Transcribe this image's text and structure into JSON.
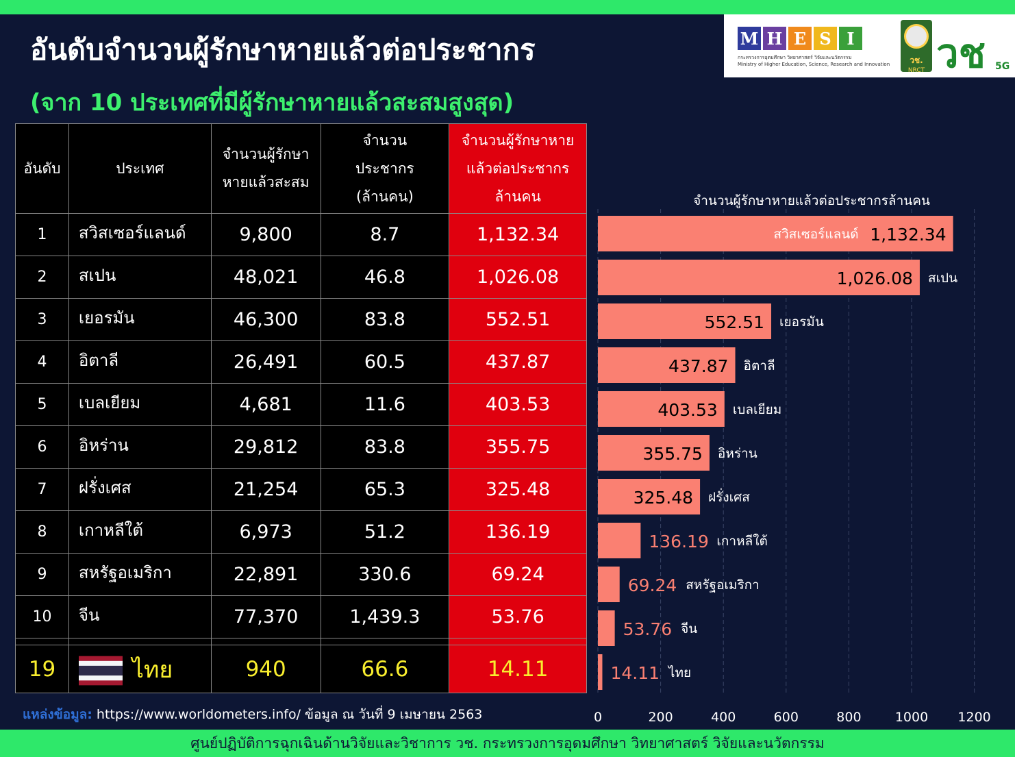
{
  "header": {
    "title": "อันดับจำนวนผู้รักษาหายแล้วต่อประชากร",
    "subtitle": "(จาก 10 ประเทศที่มีผู้รักษาหายแล้วสะสมสูงสุด)"
  },
  "logos": {
    "mhesi_letters": [
      "M",
      "H",
      "E",
      "S",
      "I"
    ],
    "mhesi_colors": [
      "#2f3b9c",
      "#6a3fa0",
      "#f08a1c",
      "#f0b81c",
      "#3aa03a"
    ],
    "mhesi_sub_th": "กระทรวงการอุดมศึกษา วิทยาศาสตร์ วิจัยและนวัตกรรม",
    "mhesi_sub_en": "Ministry of Higher Education, Science, Research and Innovation",
    "nrct_text": "วช.",
    "nrct_en": "NRCT",
    "vc_text": "วช",
    "vc_sub": "5G"
  },
  "table": {
    "headers": [
      "อันดับ",
      "ประเทศ",
      "จำนวนผู้รักษาหายแล้วสะสม",
      "จำนวนประชากร (ล้านคน)",
      "จำนวนผู้รักษาหายแล้วต่อประชากรล้านคน"
    ],
    "header_lines": {
      "col3": [
        "จำนวนผู้รักษา",
        "หายแล้วสะสม"
      ],
      "col4": [
        "จำนวน",
        "ประชากร",
        "(ล้านคน)"
      ],
      "col5": [
        "จำนวนผู้รักษาหาย",
        "แล้วต่อประชากร",
        "ล้านคน"
      ]
    },
    "rows": [
      {
        "rank": "1",
        "country": "สวิสเซอร์แลนด์",
        "recovered": "9,800",
        "population": "8.7",
        "per_million": "1,132.34"
      },
      {
        "rank": "2",
        "country": "สเปน",
        "recovered": "48,021",
        "population": "46.8",
        "per_million": "1,026.08"
      },
      {
        "rank": "3",
        "country": "เยอรมัน",
        "recovered": "46,300",
        "population": "83.8",
        "per_million": "552.51"
      },
      {
        "rank": "4",
        "country": "อิตาลี",
        "recovered": "26,491",
        "population": "60.5",
        "per_million": "437.87"
      },
      {
        "rank": "5",
        "country": "เบลเยียม",
        "recovered": "4,681",
        "population": "11.6",
        "per_million": "403.53"
      },
      {
        "rank": "6",
        "country": "อิหร่าน",
        "recovered": "29,812",
        "population": "83.8",
        "per_million": "355.75"
      },
      {
        "rank": "7",
        "country": "ฝรั่งเศส",
        "recovered": "21,254",
        "population": "65.3",
        "per_million": "325.48"
      },
      {
        "rank": "8",
        "country": "เกาหลีใต้",
        "recovered": "6,973",
        "population": "51.2",
        "per_million": "136.19"
      },
      {
        "rank": "9",
        "country": "สหรัฐอเมริกา",
        "recovered": "22,891",
        "population": "330.6",
        "per_million": "69.24"
      },
      {
        "rank": "10",
        "country": "จีน",
        "recovered": "77,370",
        "population": "1,439.3",
        "per_million": "53.76"
      }
    ],
    "thai_row": {
      "rank": "19",
      "country": "ไทย",
      "recovered": "940",
      "population": "66.6",
      "per_million": "14.11"
    }
  },
  "source": {
    "label": "แหล่งข้อมูล:",
    "text": " https://www.worldometers.info/ ข้อมูล ณ วันที่ 9 เมษายน 2563"
  },
  "footer": {
    "text": "ศูนย์ปฏิบัติการฉุกเฉินด้านวิจัยและวิชาการ   วช.   กระทรวงการอุดมศึกษา วิทยาศาสตร์ วิจัยและนวัตกรรม"
  },
  "colors": {
    "background": "#0d1634",
    "accent_green": "#2ee86a",
    "table_red": "#e0000e",
    "bar": "#fa8072",
    "thai_yellow": "#f9ee2e"
  },
  "chart_data": {
    "type": "bar",
    "orientation": "horizontal",
    "title": "จำนวนผู้รักษาหายแล้วต่อประชากรล้านคน",
    "categories": [
      "สวิสเซอร์แลนด์",
      "สเปน",
      "เยอรมัน",
      "อิตาลี",
      "เบลเยียม",
      "อิหร่าน",
      "ฝรั่งเศส",
      "เกาหลีใต้",
      "สหรัฐอเมริกา",
      "จีน",
      "ไทย"
    ],
    "values": [
      1132.34,
      1026.08,
      552.51,
      437.87,
      403.53,
      355.75,
      325.48,
      136.19,
      69.24,
      53.76,
      14.11
    ],
    "value_labels": [
      "1,132.34",
      "1,026.08",
      "552.51",
      "437.87",
      "403.53",
      "355.75",
      "325.48",
      "136.19",
      "69.24",
      "53.76",
      "14.11"
    ],
    "xlim": [
      0,
      1200
    ],
    "xticks": [
      "0",
      "200",
      "400",
      "600",
      "800",
      "1000",
      "1200"
    ],
    "grid": true
  }
}
